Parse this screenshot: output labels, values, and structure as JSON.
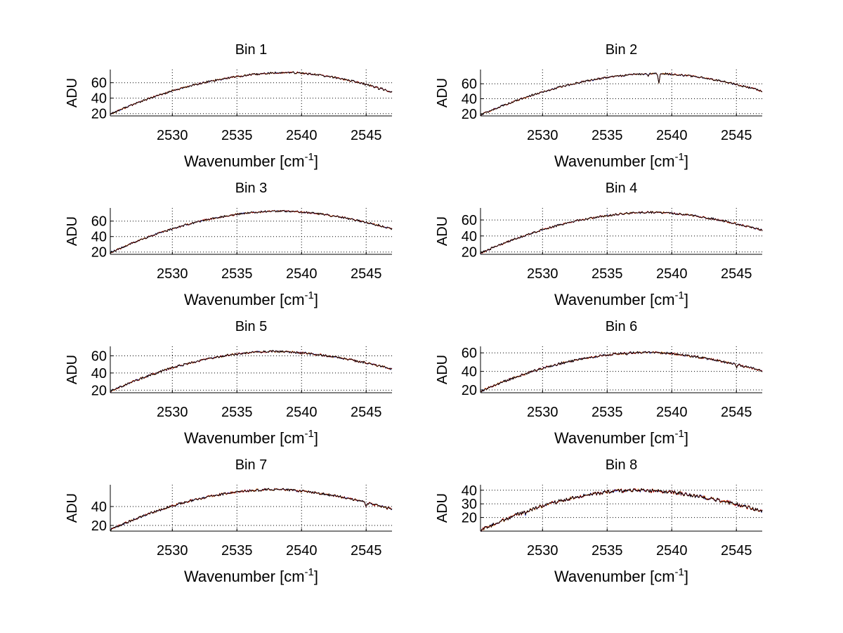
{
  "figure": {
    "xlabel_main": "Wavenumber [cm",
    "xlabel_sup": "-1",
    "xlabel_close": "]",
    "ylabel": "ADU"
  },
  "colors": {
    "lines": [
      "#1f3fff",
      "#ff8000",
      "#cc0000",
      "#000000"
    ],
    "grid": "#000000",
    "axis": "#000000"
  },
  "chart_data": [
    {
      "type": "line",
      "title": "Bin 1",
      "xlabel": "Wavenumber [cm-1]",
      "ylabel": "ADU",
      "xlim": [
        2525.2,
        2547.0
      ],
      "ylim": [
        17,
        77
      ],
      "xticks": [
        2530,
        2535,
        2540,
        2545
      ],
      "yticks": [
        20,
        40,
        60
      ],
      "grid": true,
      "curve": {
        "start": 19.5,
        "peak": 73.0,
        "peak_x": 2539.0,
        "end": 48.0
      },
      "features": [
        {
          "x": 2546.0,
          "depth": 2.0
        }
      ]
    },
    {
      "type": "line",
      "title": "Bin 2",
      "xlabel": "Wavenumber [cm-1]",
      "ylabel": "ADU",
      "xlim": [
        2525.2,
        2547.0
      ],
      "ylim": [
        17,
        79
      ],
      "xticks": [
        2530,
        2535,
        2540,
        2545
      ],
      "yticks": [
        20,
        40,
        60
      ],
      "grid": true,
      "curve": {
        "start": 18.5,
        "peak": 73.5,
        "peak_x": 2539.0,
        "end": 50.0
      },
      "features": [
        {
          "x": 2539.0,
          "depth": 14.0
        },
        {
          "x": 2538.2,
          "depth": 3.0
        }
      ]
    },
    {
      "type": "line",
      "title": "Bin 3",
      "xlabel": "Wavenumber [cm-1]",
      "ylabel": "ADU",
      "xlim": [
        2525.2,
        2547.0
      ],
      "ylim": [
        17,
        77
      ],
      "xticks": [
        2530,
        2535,
        2540,
        2545
      ],
      "yticks": [
        20,
        40,
        60
      ],
      "grid": true,
      "curve": {
        "start": 19.0,
        "peak": 73.0,
        "peak_x": 2538.5,
        "end": 50.0
      },
      "features": []
    },
    {
      "type": "line",
      "title": "Bin 4",
      "xlabel": "Wavenumber [cm-1]",
      "ylabel": "ADU",
      "xlim": [
        2525.2,
        2547.0
      ],
      "ylim": [
        17,
        75
      ],
      "xticks": [
        2530,
        2535,
        2540,
        2545
      ],
      "yticks": [
        20,
        40,
        60
      ],
      "grid": true,
      "curve": {
        "start": 18.5,
        "peak": 69.5,
        "peak_x": 2538.5,
        "end": 47.0
      },
      "features": []
    },
    {
      "type": "line",
      "title": "Bin 5",
      "xlabel": "Wavenumber [cm-1]",
      "ylabel": "ADU",
      "xlim": [
        2525.2,
        2547.0
      ],
      "ylim": [
        17,
        71
      ],
      "xticks": [
        2530,
        2535,
        2540,
        2545
      ],
      "yticks": [
        20,
        40,
        60
      ],
      "grid": true,
      "curve": {
        "start": 18.5,
        "peak": 65.0,
        "peak_x": 2538.0,
        "end": 44.5
      },
      "features": []
    },
    {
      "type": "line",
      "title": "Bin 6",
      "xlabel": "Wavenumber [cm-1]",
      "ylabel": "ADU",
      "xlim": [
        2525.2,
        2547.0
      ],
      "ylim": [
        17,
        67
      ],
      "xticks": [
        2530,
        2535,
        2540,
        2545
      ],
      "yticks": [
        20,
        40,
        60
      ],
      "grid": true,
      "curve": {
        "start": 18.5,
        "peak": 60.5,
        "peak_x": 2538.0,
        "end": 40.5
      },
      "features": [
        {
          "x": 2545.0,
          "depth": 4.0
        },
        {
          "x": 2536.5,
          "depth": 2.0
        }
      ]
    },
    {
      "type": "line",
      "title": "Bin 7",
      "xlabel": "Wavenumber [cm-1]",
      "ylabel": "ADU",
      "xlim": [
        2525.2,
        2547.0
      ],
      "ylim": [
        14,
        63
      ],
      "xticks": [
        2530,
        2535,
        2540,
        2545
      ],
      "yticks": [
        20,
        40
      ],
      "grid": true,
      "curve": {
        "start": 15.5,
        "peak": 58.0,
        "peak_x": 2538.0,
        "end": 37.0
      },
      "features": [
        {
          "x": 2545.0,
          "depth": 5.0
        }
      ]
    },
    {
      "type": "line",
      "title": "Bin 8",
      "xlabel": "Wavenumber [cm-1]",
      "ylabel": "ADU",
      "xlim": [
        2525.2,
        2547.0
      ],
      "ylim": [
        10,
        44
      ],
      "xticks": [
        2530,
        2535,
        2540,
        2545
      ],
      "yticks": [
        20,
        30,
        40
      ],
      "grid": true,
      "curve": {
        "start": 10.5,
        "peak": 40.0,
        "peak_x": 2537.5,
        "end": 24.5
      },
      "features": [
        {
          "x": 2528.7,
          "depth": 2.0
        }
      ]
    }
  ]
}
